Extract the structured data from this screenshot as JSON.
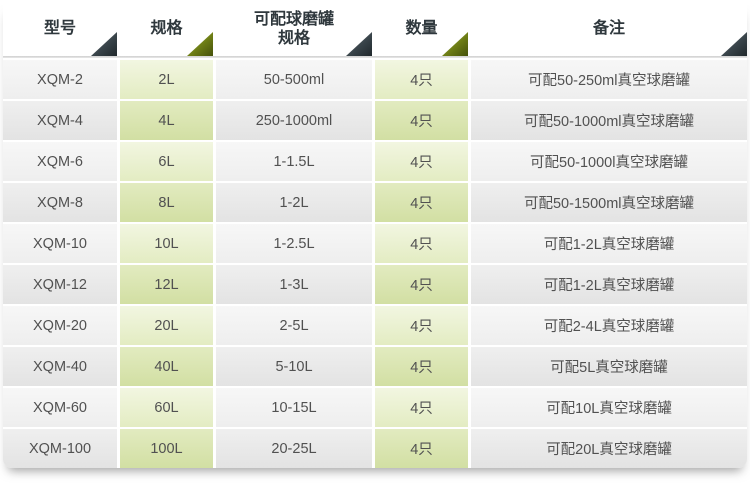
{
  "table": {
    "columns": [
      {
        "label": "型号",
        "accent": "dark"
      },
      {
        "label": "规格",
        "accent": "olive"
      },
      {
        "label": "可配球磨罐\n规格",
        "accent": "dark"
      },
      {
        "label": "数量",
        "accent": "olive"
      },
      {
        "label": "备注",
        "accent": "dark"
      }
    ],
    "rows": [
      {
        "model": "XQM-2",
        "spec": "2L",
        "jar_spec": "50-500ml",
        "qty": "4只",
        "note": "可配50-250ml真空球磨罐"
      },
      {
        "model": "XQM-4",
        "spec": "4L",
        "jar_spec": "250-1000ml",
        "qty": "4只",
        "note": "可配50-1000ml真空球磨罐"
      },
      {
        "model": "XQM-6",
        "spec": "6L",
        "jar_spec": "1-1.5L",
        "qty": "4只",
        "note": "可配50-1000l真空球磨罐"
      },
      {
        "model": "XQM-8",
        "spec": "8L",
        "jar_spec": "1-2L",
        "qty": "4只",
        "note": "可配50-1500ml真空球磨罐"
      },
      {
        "model": "XQM-10",
        "spec": "10L",
        "jar_spec": "1-2.5L",
        "qty": "4只",
        "note": "可配1-2L真空球磨罐"
      },
      {
        "model": "XQM-12",
        "spec": "12L",
        "jar_spec": "1-3L",
        "qty": "4只",
        "note": "可配1-2L真空球磨罐"
      },
      {
        "model": "XQM-20",
        "spec": "20L",
        "jar_spec": "2-5L",
        "qty": "4只",
        "note": "可配2-4L真空球磨罐"
      },
      {
        "model": "XQM-40",
        "spec": "40L",
        "jar_spec": "5-10L",
        "qty": "4只",
        "note": "可配5L真空球磨罐"
      },
      {
        "model": "XQM-60",
        "spec": "60L",
        "jar_spec": "10-15L",
        "qty": "4只",
        "note": "可配10L真空球磨罐"
      },
      {
        "model": "XQM-100",
        "spec": "100L",
        "jar_spec": "20-25L",
        "qty": "4只",
        "note": "可配20L真空球磨罐"
      }
    ]
  },
  "colors": {
    "accent_dark": "#2e373c",
    "accent_olive": "#74861f",
    "cell_green_light": "#ebf1d3",
    "cell_green_dark": "#d7e2aa",
    "cell_gray_light": "#f2f2f2",
    "cell_gray_dark": "#e8e8e8",
    "text": "#515151",
    "header_text": "#2f383d"
  }
}
